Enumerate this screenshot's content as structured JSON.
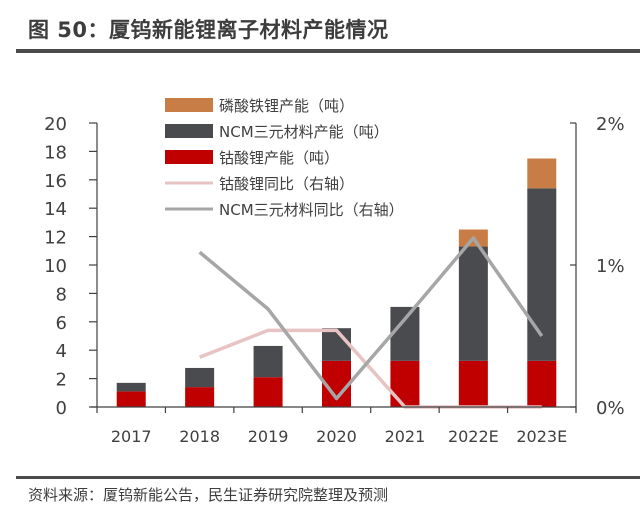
{
  "header": {
    "title": "图 50：厦钨新能锂离子材料产能情况"
  },
  "footer": {
    "source": "资料来源：厦钨新能公告，民生证券研究院整理及预测"
  },
  "chart_data": {
    "type": "bar",
    "stacked": true,
    "title": "图 50：厦钨新能锂离子材料产能情况",
    "categories": [
      "2017",
      "2018",
      "2019",
      "2020",
      "2021",
      "2022E",
      "2023E"
    ],
    "series": [
      {
        "name": "钴酸锂产能（吨）",
        "type": "bar",
        "axis": "left",
        "color": "#c00000",
        "values": [
          1.1,
          1.4,
          2.1,
          3.25,
          3.25,
          3.25,
          3.25
        ]
      },
      {
        "name": "NCM三元材料产能（吨）",
        "type": "bar",
        "axis": "left",
        "color": "#4a4b4f",
        "values": [
          0.6,
          1.35,
          2.2,
          2.3,
          3.8,
          8.05,
          12.15
        ]
      },
      {
        "name": "磷酸铁锂产能（吨）",
        "type": "bar",
        "axis": "left",
        "color": "#c87d46",
        "values": [
          0,
          0,
          0,
          0,
          0,
          1.2,
          2.1
        ]
      },
      {
        "name": "钴酸锂同比（右轴）",
        "type": "line",
        "axis": "right",
        "color": "#e8c3c3",
        "values": [
          null,
          0.35,
          0.54,
          0.54,
          0.0,
          0.0,
          0.0
        ]
      },
      {
        "name": "NCM三元材料同比（右轴）",
        "type": "line",
        "axis": "right",
        "color": "#a6a6a6",
        "values": [
          null,
          1.09,
          0.69,
          0.06,
          0.62,
          1.19,
          0.5
        ]
      }
    ],
    "legend": {
      "placement": "top-left",
      "order": [
        "磷酸铁锂产能（吨）",
        "NCM三元材料产能（吨）",
        "钴酸锂产能（吨）",
        "钴酸锂同比（右轴）",
        "NCM三元材料同比（右轴）"
      ]
    },
    "left_axis": {
      "ylim": [
        0,
        20
      ],
      "ticks": [
        "0",
        "2",
        "4",
        "6",
        "8",
        "10",
        "12",
        "14",
        "16",
        "18",
        "20"
      ]
    },
    "right_axis": {
      "ylim": [
        0,
        2
      ],
      "unit": "%",
      "ticks": [
        "0%",
        "1%",
        "2%"
      ]
    },
    "xlabel": "",
    "ylabel": "",
    "grid": false
  }
}
